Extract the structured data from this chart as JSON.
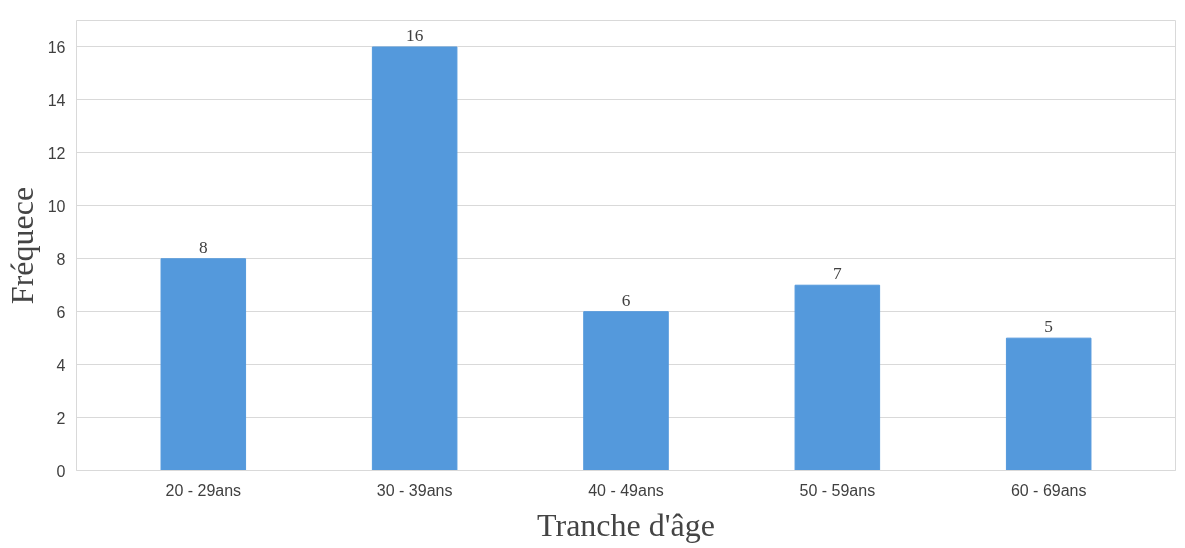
{
  "chart_data": {
    "type": "bar",
    "xlabel": "Tranche d'âge",
    "ylabel": "Fréquece",
    "categories": [
      "20 - 29ans",
      "30 - 39ans",
      "40 - 49ans",
      "50 - 59ans",
      "60 - 69ans"
    ],
    "values": [
      8,
      16,
      6,
      7,
      5
    ],
    "color": "#5499dc",
    "ylim": [
      0,
      17
    ],
    "yticks": [
      0,
      2,
      4,
      6,
      8,
      10,
      12,
      14,
      16
    ],
    "grid": "y",
    "data_labels": true
  }
}
